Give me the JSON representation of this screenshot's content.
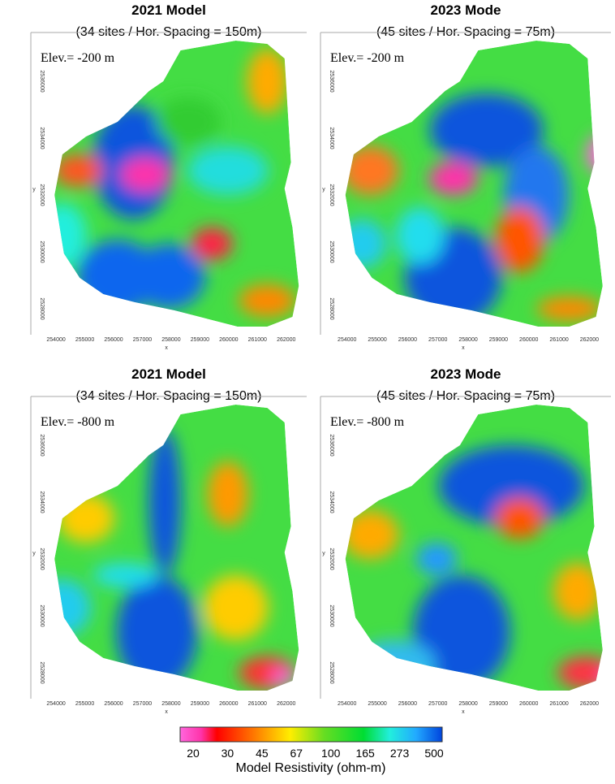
{
  "panels": [
    {
      "title": "2021 Model",
      "subtitle": "(34 sites / Hor. Spacing = 150m)",
      "elevation": "Elev.= -200 m"
    },
    {
      "title": "2023 Mode",
      "subtitle": "(45 sites / Hor. Spacing = 75m)",
      "elevation": "Elev.= -200 m"
    },
    {
      "title": "2021 Model",
      "subtitle": "(34 sites / Hor. Spacing = 150m)",
      "elevation": "Elev.= -800 m"
    },
    {
      "title": "2023 Mode",
      "subtitle": "(45 sites / Hor. Spacing = 75m)",
      "elevation": "Elev.= -800 m"
    }
  ],
  "axes": {
    "x_label": "x",
    "y_label": "y",
    "x_ticks": [
      254000,
      255000,
      256000,
      257000,
      258000,
      259000,
      260000,
      261000,
      262000
    ],
    "y_ticks": [
      2536000,
      2534000,
      2532000,
      2530000,
      2528000
    ]
  },
  "colorbar": {
    "ticks": [
      20,
      30,
      45,
      67,
      100,
      165,
      273,
      500
    ],
    "label": "Model Resistivity (ohm-m)"
  }
}
